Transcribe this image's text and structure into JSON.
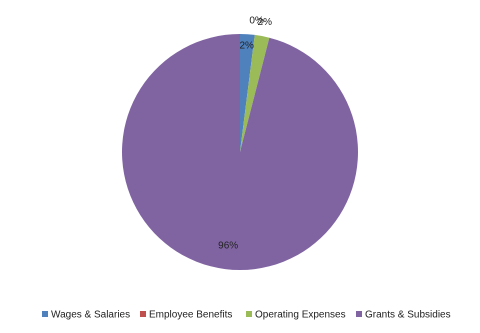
{
  "chart_data": {
    "type": "pie",
    "categories": [
      "Wages & Salaries",
      "Employee Benefits",
      "Operating Expenses",
      "Grants & Subsidies"
    ],
    "values": [
      2,
      0,
      2,
      96
    ],
    "value_labels": [
      "2%",
      "0%",
      "2%",
      "96%"
    ],
    "colors": [
      "#4f81bd",
      "#c0504d",
      "#9bbb59",
      "#8064a2"
    ],
    "legend": "bottom"
  }
}
